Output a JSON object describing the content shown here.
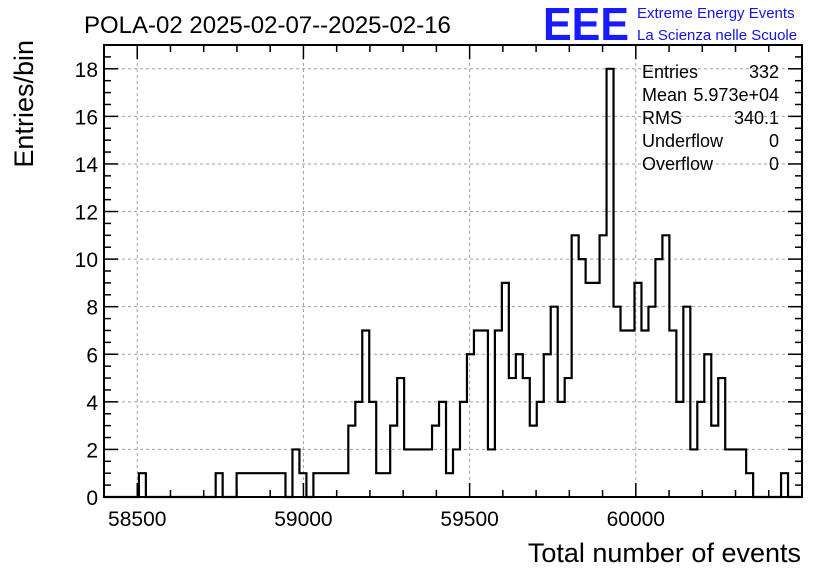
{
  "header": {
    "title": "POLA-02 2025-02-07--2025-02-16",
    "logo_mark": "EEE",
    "logo_line1": "Extreme Energy Events",
    "logo_line2": "La Scienza nelle Scuole"
  },
  "colors": {
    "logo": "#1a1aff",
    "histogram": "#000000",
    "grid": "#a0a0a0"
  },
  "stats": {
    "rows": [
      {
        "label": "Entries",
        "value": "332"
      },
      {
        "label": "Mean",
        "value": "5.973e+04"
      },
      {
        "label": "RMS",
        "value": "340.1"
      },
      {
        "label": "Underflow",
        "value": "0"
      },
      {
        "label": "Overflow",
        "value": "0"
      }
    ]
  },
  "chart_data": {
    "type": "histogram",
    "title": "POLA-02 2025-02-07--2025-02-16",
    "xlabel": "Total number of events",
    "ylabel": "Entries/bin",
    "xlim": [
      58400,
      60500
    ],
    "ylim": [
      0,
      19
    ],
    "bin_width": 21,
    "x_ticks": [
      58500,
      59000,
      59500,
      60000
    ],
    "y_ticks": [
      0,
      2,
      4,
      6,
      8,
      10,
      12,
      14,
      16,
      18
    ],
    "grid": true,
    "legend": "top-right statistics box",
    "bin_starts": [
      58400,
      58421,
      58442,
      58463,
      58484,
      58505,
      58526,
      58547,
      58568,
      58589,
      58610,
      58631,
      58652,
      58673,
      58694,
      58715,
      58736,
      58757,
      58778,
      58799,
      58820,
      58841,
      58862,
      58883,
      58904,
      58925,
      58946,
      58967,
      58988,
      59009,
      59030,
      59051,
      59072,
      59093,
      59114,
      59135,
      59156,
      59177,
      59198,
      59219,
      59240,
      59261,
      59282,
      59303,
      59324,
      59345,
      59366,
      59387,
      59408,
      59429,
      59450,
      59471,
      59492,
      59513,
      59534,
      59555,
      59576,
      59597,
      59618,
      59639,
      59660,
      59681,
      59702,
      59723,
      59744,
      59765,
      59786,
      59807,
      59828,
      59849,
      59870,
      59891,
      59912,
      59933,
      59954,
      59975,
      59996,
      60017,
      60038,
      60059,
      60080,
      60101,
      60122,
      60143,
      60164,
      60185,
      60206,
      60227,
      60248,
      60269,
      60290,
      60311,
      60332,
      60353,
      60374,
      60395,
      60416,
      60437,
      60458,
      60479
    ],
    "counts": [
      0,
      0,
      0,
      0,
      0,
      1,
      0,
      0,
      0,
      0,
      0,
      0,
      0,
      0,
      0,
      0,
      1,
      0,
      0,
      1,
      1,
      1,
      1,
      1,
      1,
      1,
      0,
      2,
      1,
      0,
      1,
      1,
      1,
      1,
      1,
      3,
      4,
      7,
      4,
      1,
      1,
      3,
      5,
      2,
      2,
      2,
      2,
      3,
      4,
      1,
      2,
      4,
      6,
      7,
      7,
      2,
      7,
      9,
      5,
      6,
      5,
      3,
      4,
      6,
      8,
      4,
      5,
      11,
      10,
      9,
      9,
      11,
      18,
      8,
      7,
      7,
      9,
      7,
      8,
      10,
      11,
      7,
      4,
      8,
      2,
      4,
      6,
      3,
      5,
      2,
      2,
      2,
      1,
      0,
      0,
      0,
      0,
      1,
      0,
      0
    ]
  }
}
